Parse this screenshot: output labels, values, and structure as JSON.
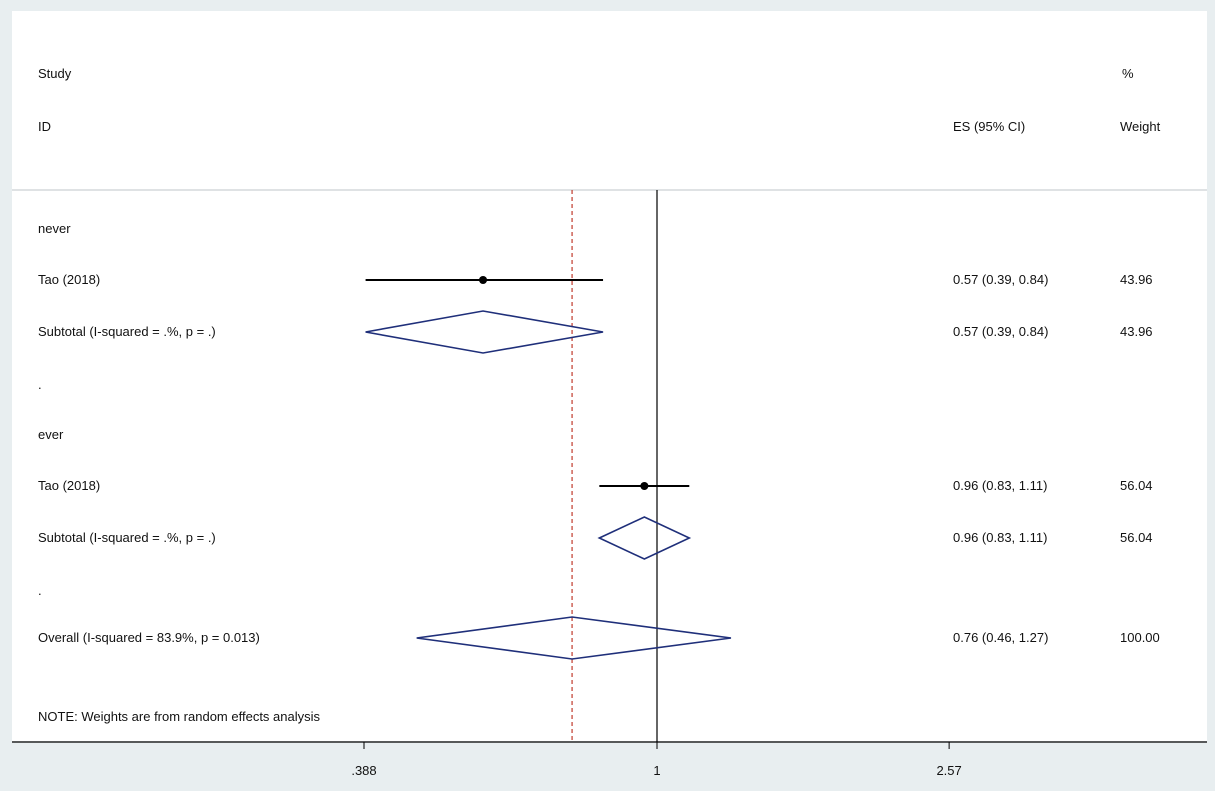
{
  "header": {
    "study_label": "Study",
    "id_label": "ID",
    "es_label": "ES (95% CI)",
    "pct_label": "%",
    "weight_label": "Weight"
  },
  "note": "NOTE: Weights are from random effects analysis",
  "colors": {
    "background": "#e8eef0",
    "plot_background": "#ffffff",
    "diamond": "#1f2f7a",
    "null_line": "#000000",
    "overall_line": "#c0392b"
  },
  "chart_data": {
    "type": "forest",
    "x_scale": "log",
    "x_ticks": [
      ".388",
      "1",
      "2.57"
    ],
    "null_value": 1,
    "overall_line_value": 0.76,
    "rows": [
      {
        "kind": "group",
        "label": "never"
      },
      {
        "kind": "study",
        "label": "Tao (2018)",
        "es": 0.57,
        "lo": 0.39,
        "hi": 0.84,
        "es_text": "0.57 (0.39, 0.84)",
        "weight": "43.96"
      },
      {
        "kind": "subtotal",
        "label": "Subtotal  (I-squared = .%, p = .)",
        "es": 0.57,
        "lo": 0.39,
        "hi": 0.84,
        "es_text": "0.57 (0.39, 0.84)",
        "weight": "43.96"
      },
      {
        "kind": "spacer",
        "label": "."
      },
      {
        "kind": "group",
        "label": "ever"
      },
      {
        "kind": "study",
        "label": "Tao (2018)",
        "es": 0.96,
        "lo": 0.83,
        "hi": 1.11,
        "es_text": "0.96 (0.83, 1.11)",
        "weight": "56.04"
      },
      {
        "kind": "subtotal",
        "label": "Subtotal  (I-squared = .%, p = .)",
        "es": 0.96,
        "lo": 0.83,
        "hi": 1.11,
        "es_text": "0.96 (0.83, 1.11)",
        "weight": "56.04"
      },
      {
        "kind": "spacer",
        "label": "."
      },
      {
        "kind": "overall",
        "label": "Overall  (I-squared = 83.9%, p = 0.013)",
        "es": 0.76,
        "lo": 0.46,
        "hi": 1.27,
        "es_text": "0.76 (0.46, 1.27)",
        "weight": "100.00"
      }
    ]
  }
}
